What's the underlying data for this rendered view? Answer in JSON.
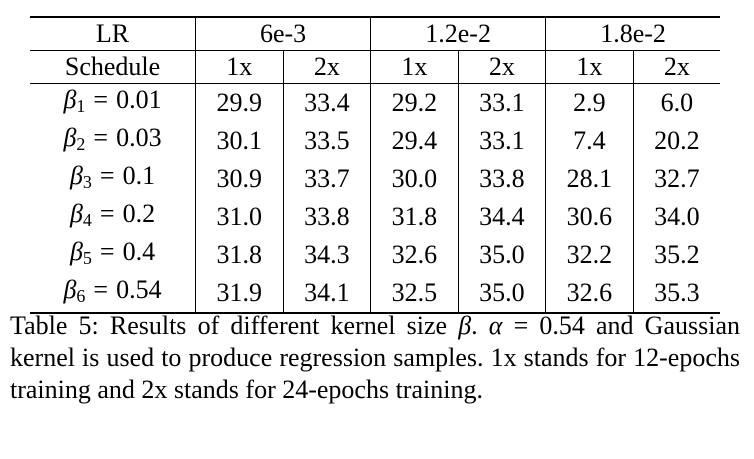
{
  "table": {
    "header_row1": {
      "lr_label": "LR",
      "groups": [
        "6e-3",
        "1.2e-2",
        "1.8e-2"
      ]
    },
    "header_row2": {
      "schedule_label": "Schedule",
      "columns": [
        "1x",
        "2x",
        "1x",
        "2x",
        "1x",
        "2x"
      ]
    },
    "rows": [
      {
        "beta_symbol": "β",
        "beta_index": "1",
        "equals": "=",
        "beta_value": "0.01",
        "cells": [
          {
            "v": "29.9",
            "b": true
          },
          {
            "v": "33.4",
            "b": true
          },
          {
            "v": "29.2",
            "b": false
          },
          {
            "v": "33.1",
            "b": false
          },
          {
            "v": "2.9",
            "b": false
          },
          {
            "v": "6.0",
            "b": false
          }
        ]
      },
      {
        "beta_symbol": "β",
        "beta_index": "2",
        "equals": "=",
        "beta_value": "0.03",
        "cells": [
          {
            "v": "30.1",
            "b": true
          },
          {
            "v": "33.5",
            "b": true
          },
          {
            "v": "29.4",
            "b": false
          },
          {
            "v": "33.1",
            "b": false
          },
          {
            "v": "7.4",
            "b": false
          },
          {
            "v": "20.2",
            "b": false
          }
        ]
      },
      {
        "beta_symbol": "β",
        "beta_index": "3",
        "equals": "=",
        "beta_value": "0.1",
        "cells": [
          {
            "v": "30.9",
            "b": true
          },
          {
            "v": "33.7",
            "b": false
          },
          {
            "v": "30.0",
            "b": false
          },
          {
            "v": "33.8",
            "b": true
          },
          {
            "v": "28.1",
            "b": false
          },
          {
            "v": "32.7",
            "b": false
          }
        ]
      },
      {
        "beta_symbol": "β",
        "beta_index": "4",
        "equals": "=",
        "beta_value": "0.2",
        "cells": [
          {
            "v": "31.0",
            "b": false
          },
          {
            "v": "33.8",
            "b": false
          },
          {
            "v": "31.8",
            "b": true
          },
          {
            "v": "34.4",
            "b": true
          },
          {
            "v": "30.6",
            "b": false
          },
          {
            "v": "34.0",
            "b": false
          }
        ]
      },
      {
        "beta_symbol": "β",
        "beta_index": "5",
        "equals": "=",
        "beta_value": "0.4",
        "cells": [
          {
            "v": "31.8",
            "b": false
          },
          {
            "v": "34.3",
            "b": false
          },
          {
            "v": "32.6",
            "b": true
          },
          {
            "v": "35.0",
            "b": false
          },
          {
            "v": "32.2",
            "b": false
          },
          {
            "v": "35.2",
            "b": true
          }
        ]
      },
      {
        "beta_symbol": "β",
        "beta_index": "6",
        "equals": "=",
        "beta_value": "0.54",
        "cells": [
          {
            "v": "31.9",
            "b": false
          },
          {
            "v": "34.1",
            "b": false
          },
          {
            "v": "32.5",
            "b": false
          },
          {
            "v": "35.0",
            "b": false
          },
          {
            "v": "32.6",
            "b": true
          },
          {
            "v": "35.3",
            "b": true
          }
        ]
      }
    ]
  },
  "caption": {
    "part1": "Table 5: Results of different kernel size ",
    "beta": "β",
    "part2": ". ",
    "alpha": "α",
    "part3": " = 0.54",
    "part4": " and Gaussian kernel is used to produce regression samples. 1x stands for 12-epochs training and 2x stands for 24-epochs training."
  }
}
